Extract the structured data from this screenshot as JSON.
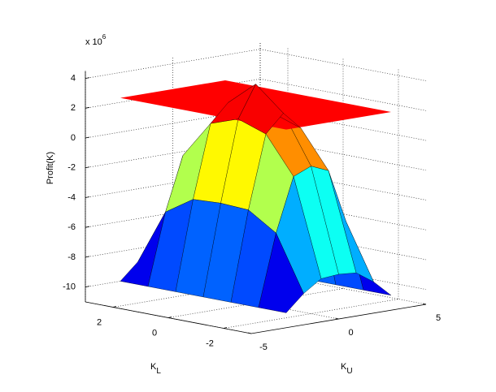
{
  "chart_data": {
    "type": "surface3d",
    "zlabel": "Profit(K)",
    "xlabel": {
      "main": "K",
      "sub": "U"
    },
    "ylabel": {
      "main": "K",
      "sub": "L"
    },
    "z_multiplier": {
      "base": "x 10",
      "exponent": "6"
    },
    "x": [
      -3,
      -2,
      -1,
      0,
      1,
      2,
      3
    ],
    "y": [
      3,
      2,
      1,
      0,
      -1,
      -2,
      -3
    ],
    "z": [
      [
        -10,
        -8.9,
        -8.1,
        -8.0,
        -8.1,
        -8.9,
        -10
      ],
      [
        -10,
        -5.2,
        -1.6,
        -1.1,
        -1.6,
        -5.2,
        -10
      ],
      [
        -10,
        -4.0,
        0.9,
        2.1,
        0.9,
        -4.0,
        -10
      ],
      [
        -10,
        -3.9,
        1.55,
        3.7,
        1.55,
        -3.9,
        -10
      ],
      [
        -10,
        -4.0,
        0.9,
        2.1,
        0.9,
        -4.0,
        -10
      ],
      [
        -10,
        -5.2,
        -1.6,
        -1.1,
        -1.6,
        -5.2,
        -10
      ],
      [
        -10,
        -8.9,
        -8.1,
        -8.0,
        -8.1,
        -8.9,
        -10
      ]
    ],
    "plane": {
      "z": 2.3,
      "color": "#ff0000"
    },
    "xlim": [
      -5,
      5
    ],
    "ylim": [
      -3,
      3
    ],
    "zlim": [
      -11,
      4.5
    ],
    "xticks": [
      -5,
      0,
      5
    ],
    "yticks": [
      -2,
      0,
      2
    ],
    "zticks": [
      -10,
      -8,
      -6,
      -4,
      -2,
      0,
      2,
      4
    ],
    "grid": true
  }
}
